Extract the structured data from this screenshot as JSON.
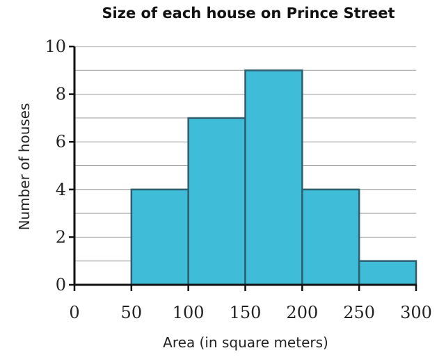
{
  "chart_data": {
    "type": "bar",
    "title": "Size of each house on Prince Street",
    "xlabel": "Area (in square meters)",
    "ylabel": "Number of houses",
    "bins": [
      {
        "start": 50,
        "end": 100,
        "value": 4
      },
      {
        "start": 100,
        "end": 150,
        "value": 7
      },
      {
        "start": 150,
        "end": 200,
        "value": 9
      },
      {
        "start": 200,
        "end": 250,
        "value": 4
      },
      {
        "start": 250,
        "end": 300,
        "value": 1
      }
    ],
    "xlim": [
      0,
      300
    ],
    "ylim": [
      0,
      10
    ],
    "x_ticks": [
      "0",
      "50",
      "100",
      "150",
      "200",
      "250",
      "300"
    ],
    "y_ticks": [
      "0",
      "2",
      "4",
      "6",
      "8",
      "10"
    ],
    "gridlines": "horizontal, every 1 unit",
    "bar_color": "#3fbcd8"
  }
}
